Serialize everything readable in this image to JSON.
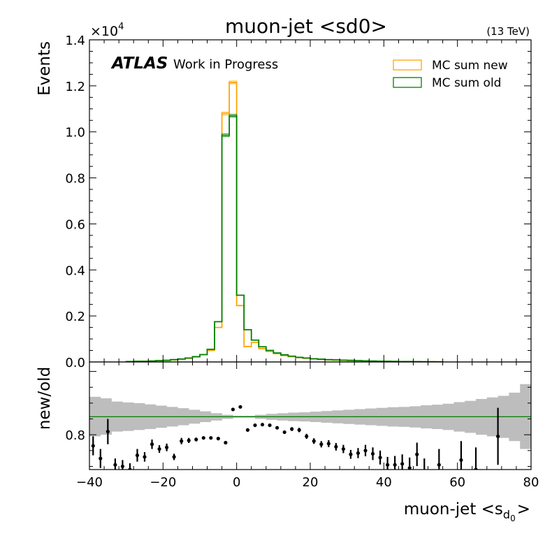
{
  "chart_data": [
    {
      "type": "line",
      "panel": "main",
      "title": "muon-jet <sd0>",
      "energy_label": "(13 TeV)",
      "atlas_label": "ATLAS",
      "atlas_sublabel": "Work in Progress",
      "ylabel": "Events",
      "y_multiplier": "×10",
      "y_multiplier_exp": "4",
      "xlim": [
        -40,
        80
      ],
      "ylim": [
        0,
        1.4
      ],
      "y_unit_scale": 10000,
      "x_ticks": [
        -40,
        -20,
        0,
        20,
        40,
        60,
        80
      ],
      "x_tick_labels": [
        "−40",
        "−20",
        "0",
        "20",
        "40",
        "60",
        "80"
      ],
      "y_ticks": [
        0,
        0.2,
        0.4,
        0.6,
        0.8,
        1.0,
        1.2,
        1.4
      ],
      "y_tick_labels": [
        "0.0",
        "0.2",
        "0.4",
        "0.6",
        "0.8",
        "1.0",
        "1.2",
        "1.4"
      ],
      "legend_placement": "top-right",
      "bin_edges": [
        -30,
        -28,
        -26,
        -24,
        -22,
        -20,
        -18,
        -16,
        -14,
        -12,
        -10,
        -8,
        -6,
        -4,
        -2,
        0,
        2,
        4,
        6,
        8,
        10,
        12,
        14,
        16,
        18,
        20,
        22,
        24,
        26,
        28,
        30,
        32,
        34,
        36,
        38,
        40,
        42,
        44,
        46,
        48,
        50,
        52,
        54,
        56
      ],
      "series": [
        {
          "name": "MC sum new",
          "color": "#ffa500",
          "values": [
            0.002,
            0.002,
            0.003,
            0.004,
            0.005,
            0.007,
            0.009,
            0.012,
            0.016,
            0.022,
            0.032,
            0.05,
            0.15,
            1.08,
            1.215,
            0.245,
            0.067,
            0.085,
            0.058,
            0.046,
            0.036,
            0.028,
            0.023,
            0.019,
            0.016,
            0.013,
            0.011,
            0.009,
            0.008,
            0.007,
            0.006,
            0.005,
            0.004,
            0.0035,
            0.003,
            0.0025,
            0.002,
            0.0018,
            0.0015,
            0.0012,
            0.001,
            0.0008,
            0.0006
          ]
        },
        {
          "name": "MC sum old",
          "color": "#008000",
          "values": [
            0.002,
            0.003,
            0.003,
            0.004,
            0.006,
            0.007,
            0.01,
            0.013,
            0.017,
            0.023,
            0.032,
            0.055,
            0.175,
            0.985,
            1.07,
            0.29,
            0.14,
            0.095,
            0.066,
            0.05,
            0.039,
            0.031,
            0.025,
            0.02,
            0.017,
            0.014,
            0.012,
            0.01,
            0.009,
            0.008,
            0.007,
            0.006,
            0.005,
            0.004,
            0.0035,
            0.003,
            0.0025,
            0.002,
            0.0017,
            0.0014,
            0.0011,
            0.0009,
            0.0007
          ]
        }
      ],
      "xlabel": ""
    },
    {
      "type": "scatter",
      "panel": "ratio",
      "ylabel": "new/old",
      "xlabel_main": "muon-jet <s",
      "xlabel_sub": "d",
      "xlabel_subsub": "0",
      "xlabel_close": ">",
      "xlim": [
        -40,
        80
      ],
      "ylim": [
        0.69,
        1.03
      ],
      "y_ticks": [
        0.8
      ],
      "y_tick_labels": [
        "0.8"
      ],
      "reference_line": 0.857,
      "reference_color": "#008000",
      "band_color": "#bdbdbd",
      "band_edges": [
        -40,
        -37,
        -34,
        -31,
        -28,
        -25,
        -22,
        -19,
        -16,
        -13,
        -10,
        -7,
        -4,
        -1,
        2,
        5,
        8,
        11,
        14,
        17,
        20,
        23,
        26,
        29,
        32,
        35,
        38,
        41,
        44,
        47,
        50,
        53,
        56,
        59,
        62,
        65,
        68,
        71,
        74,
        77,
        80
      ],
      "band_lo": [
        0.795,
        0.8,
        0.81,
        0.812,
        0.815,
        0.818,
        0.822,
        0.826,
        0.83,
        0.835,
        0.84,
        0.845,
        0.85,
        0.854,
        0.854,
        0.85,
        0.847,
        0.845,
        0.843,
        0.842,
        0.84,
        0.838,
        0.836,
        0.834,
        0.832,
        0.83,
        0.828,
        0.826,
        0.825,
        0.823,
        0.82,
        0.818,
        0.815,
        0.81,
        0.806,
        0.8,
        0.795,
        0.79,
        0.78,
        0.755
      ],
      "band_hi": [
        0.92,
        0.915,
        0.905,
        0.902,
        0.9,
        0.896,
        0.892,
        0.888,
        0.884,
        0.879,
        0.874,
        0.868,
        0.863,
        0.86,
        0.86,
        0.863,
        0.866,
        0.868,
        0.87,
        0.871,
        0.873,
        0.875,
        0.877,
        0.879,
        0.881,
        0.883,
        0.885,
        0.887,
        0.888,
        0.89,
        0.893,
        0.895,
        0.898,
        0.903,
        0.907,
        0.913,
        0.918,
        0.923,
        0.933,
        0.96
      ],
      "points_x": [
        -39,
        -37,
        -35,
        -33,
        -31,
        -29,
        -27,
        -25,
        -23,
        -21,
        -19,
        -17,
        -15,
        -13,
        -11,
        -9,
        -7,
        -5,
        -3,
        -1,
        1,
        3,
        5,
        7,
        9,
        11,
        13,
        15,
        17,
        19,
        21,
        23,
        25,
        27,
        29,
        31,
        33,
        35,
        37,
        39,
        41,
        43,
        45,
        47,
        49,
        51,
        55,
        61,
        65,
        71
      ],
      "points_y": [
        0.765,
        0.725,
        0.81,
        0.705,
        0.7,
        0.69,
        0.735,
        0.73,
        0.77,
        0.755,
        0.76,
        0.73,
        0.78,
        0.782,
        0.785,
        0.79,
        0.79,
        0.788,
        0.775,
        0.88,
        0.888,
        0.815,
        0.83,
        0.832,
        0.83,
        0.822,
        0.808,
        0.818,
        0.815,
        0.795,
        0.78,
        0.77,
        0.772,
        0.762,
        0.755,
        0.738,
        0.742,
        0.75,
        0.74,
        0.728,
        0.705,
        0.705,
        0.708,
        0.695,
        0.738,
        0.685,
        0.705,
        0.72,
        0.69,
        0.795
      ],
      "points_err": [
        0.03,
        0.03,
        0.04,
        0.02,
        0.02,
        0.02,
        0.02,
        0.015,
        0.015,
        0.012,
        0.012,
        0.01,
        0.01,
        0.008,
        0.006,
        0.005,
        0.004,
        0.003,
        0.002,
        0.002,
        0.002,
        0.002,
        0.003,
        0.004,
        0.004,
        0.005,
        0.005,
        0.006,
        0.007,
        0.008,
        0.009,
        0.01,
        0.011,
        0.012,
        0.013,
        0.014,
        0.016,
        0.018,
        0.02,
        0.022,
        0.025,
        0.028,
        0.03,
        0.033,
        0.037,
        0.04,
        0.05,
        0.06,
        0.07,
        0.09
      ]
    }
  ]
}
